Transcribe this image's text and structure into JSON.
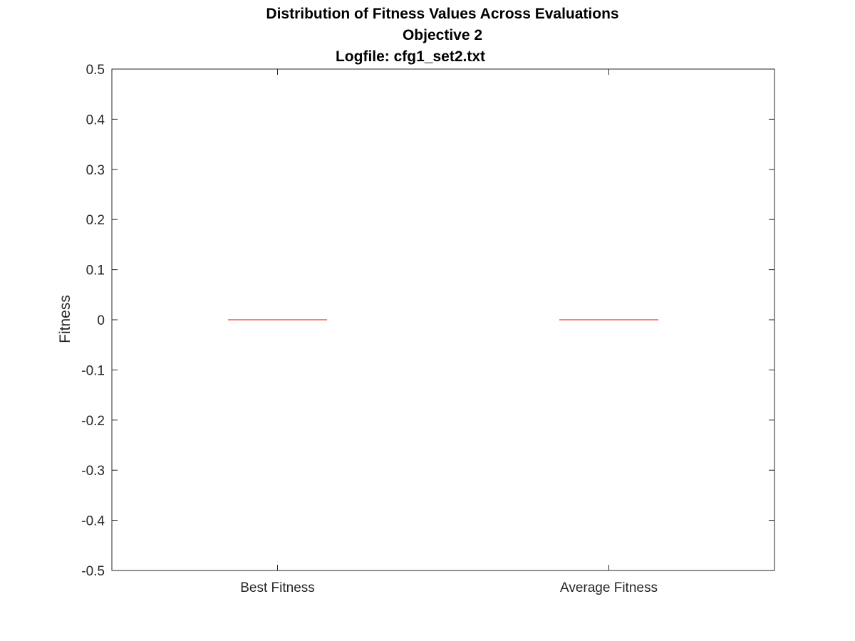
{
  "chart_data": {
    "type": "box",
    "title": "Distribution of Fitness Values Across Evaluations",
    "subtitle_lines": [
      "Objective 2",
      "Logfile: cfg1_set2.txt"
    ],
    "xlabel": "",
    "ylabel": "Fitness",
    "categories": [
      "Best Fitness",
      "Average Fitness"
    ],
    "y_ticks": [
      0.5,
      0.4,
      0.3,
      0.2,
      0.1,
      0,
      -0.1,
      -0.2,
      -0.3,
      -0.4,
      -0.5
    ],
    "y_tick_labels": [
      "0.5",
      "0.4",
      "0.3",
      "0.2",
      "0.1",
      "0",
      "-0.1",
      "-0.2",
      "-0.3",
      "-0.4",
      "-0.5"
    ],
    "ylim": [
      -0.5,
      0.5
    ],
    "series": [
      {
        "category": "Best Fitness",
        "min": 0,
        "q1": 0,
        "median": 0,
        "q3": 0,
        "max": 0
      },
      {
        "category": "Average Fitness",
        "min": 0,
        "q1": 0,
        "median": 0,
        "q3": 0,
        "max": 0
      }
    ],
    "median_color": "#ff0000",
    "grid": false
  }
}
